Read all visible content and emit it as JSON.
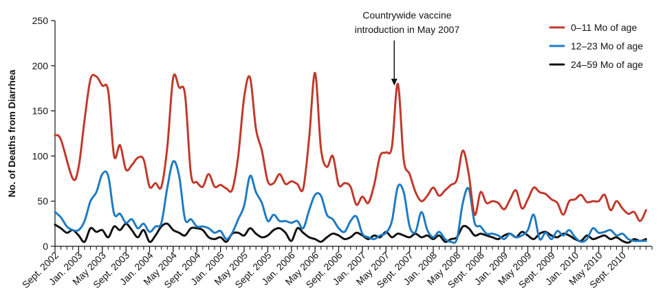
{
  "chart_data": {
    "type": "line",
    "title": "",
    "xlabel": "",
    "ylabel": "No. of Deaths from Diarrhea",
    "ylim": [
      0,
      250
    ],
    "y_ticks": [
      0,
      50,
      100,
      150,
      200,
      250
    ],
    "x_tick_labels": [
      "Sept. 2002",
      "Jan. 2003",
      "May 2003",
      "Sept. 2003",
      "Jan. 2004",
      "May 2004",
      "Sept. 2004",
      "Jan. 2005",
      "May 2005",
      "Sept. 2005",
      "Jan. 2006",
      "May 2006",
      "Sept. 2006",
      "Jan. 2007",
      "May 2007",
      "Sept. 2007",
      "Jan. 2008",
      "May 2008",
      "Sept. 2008",
      "Jan. 2009",
      "May 2009",
      "Sept. 2009",
      "Jan. 2010",
      "May 2010",
      "Sept. 2010"
    ],
    "x_index_range": [
      0,
      101
    ],
    "grid": false,
    "legend_position": "top-right",
    "annotation": {
      "lines": [
        "Countrywide vaccine",
        "introduction in May 2007"
      ],
      "x_index": 57.4,
      "arrow_from_y": 228,
      "arrow_to_y": 178
    },
    "series": [
      {
        "name": "0–11 Mo of age",
        "color": "#c0392b",
        "points": [
          [
            0,
            123
          ],
          [
            1,
            118
          ],
          [
            3,
            75
          ],
          [
            4,
            88
          ],
          [
            5,
            140
          ],
          [
            6,
            185
          ],
          [
            7,
            188
          ],
          [
            8,
            178
          ],
          [
            9,
            172
          ],
          [
            10,
            100
          ],
          [
            11,
            112
          ],
          [
            12,
            85
          ],
          [
            13,
            90
          ],
          [
            14,
            98
          ],
          [
            15,
            96
          ],
          [
            16,
            66
          ],
          [
            17,
            70
          ],
          [
            18,
            66
          ],
          [
            19,
            110
          ],
          [
            20,
            187
          ],
          [
            21,
            176
          ],
          [
            22,
            168
          ],
          [
            23,
            80
          ],
          [
            24,
            71
          ],
          [
            25,
            66
          ],
          [
            26,
            80
          ],
          [
            27,
            66
          ],
          [
            28,
            68
          ],
          [
            29,
            64
          ],
          [
            30,
            63
          ],
          [
            31,
            100
          ],
          [
            32,
            165
          ],
          [
            33,
            187
          ],
          [
            34,
            130
          ],
          [
            35,
            106
          ],
          [
            36,
            72
          ],
          [
            37,
            70
          ],
          [
            38,
            80
          ],
          [
            39,
            69
          ],
          [
            40,
            72
          ],
          [
            41,
            69
          ],
          [
            42,
            64
          ],
          [
            43,
            120
          ],
          [
            44,
            192
          ],
          [
            45,
            108
          ],
          [
            46,
            88
          ],
          [
            47,
            100
          ],
          [
            48,
            68
          ],
          [
            49,
            70
          ],
          [
            50,
            66
          ],
          [
            51,
            46
          ],
          [
            52,
            55
          ],
          [
            53,
            48
          ],
          [
            54,
            68
          ],
          [
            55,
            100
          ],
          [
            56,
            104
          ],
          [
            57,
            110
          ],
          [
            58,
            180
          ],
          [
            59,
            96
          ],
          [
            60,
            80
          ],
          [
            61,
            60
          ],
          [
            62,
            50
          ],
          [
            63,
            56
          ],
          [
            64,
            65
          ],
          [
            65,
            56
          ],
          [
            66,
            62
          ],
          [
            67,
            68
          ],
          [
            68,
            74
          ],
          [
            69,
            106
          ],
          [
            70,
            80
          ],
          [
            71,
            35
          ],
          [
            72,
            60
          ],
          [
            73,
            48
          ],
          [
            74,
            50
          ],
          [
            75,
            48
          ],
          [
            76,
            41
          ],
          [
            77,
            52
          ],
          [
            78,
            62
          ],
          [
            79,
            42
          ],
          [
            80,
            52
          ],
          [
            81,
            65
          ],
          [
            82,
            60
          ],
          [
            83,
            58
          ],
          [
            84,
            52
          ],
          [
            85,
            48
          ],
          [
            86,
            35
          ],
          [
            87,
            50
          ],
          [
            88,
            52
          ],
          [
            89,
            57
          ],
          [
            90,
            49
          ],
          [
            91,
            50
          ],
          [
            92,
            50
          ],
          [
            93,
            57
          ],
          [
            94,
            40
          ],
          [
            95,
            50
          ],
          [
            96,
            42
          ],
          [
            97,
            36
          ],
          [
            98,
            38
          ],
          [
            99,
            28
          ],
          [
            100,
            40
          ]
        ]
      },
      {
        "name": "12–23 Mo of age",
        "color": "#1e7bc3",
        "points": [
          [
            0,
            38
          ],
          [
            1,
            32
          ],
          [
            2,
            22
          ],
          [
            3,
            18
          ],
          [
            4,
            18
          ],
          [
            5,
            28
          ],
          [
            6,
            50
          ],
          [
            7,
            60
          ],
          [
            8,
            80
          ],
          [
            9,
            78
          ],
          [
            10,
            36
          ],
          [
            11,
            36
          ],
          [
            12,
            26
          ],
          [
            13,
            30
          ],
          [
            14,
            20
          ],
          [
            15,
            25
          ],
          [
            16,
            16
          ],
          [
            17,
            22
          ],
          [
            18,
            26
          ],
          [
            19,
            65
          ],
          [
            20,
            94
          ],
          [
            21,
            78
          ],
          [
            22,
            30
          ],
          [
            23,
            30
          ],
          [
            24,
            22
          ],
          [
            25,
            22
          ],
          [
            26,
            20
          ],
          [
            27,
            15
          ],
          [
            28,
            17
          ],
          [
            29,
            8
          ],
          [
            30,
            15
          ],
          [
            31,
            30
          ],
          [
            32,
            45
          ],
          [
            33,
            78
          ],
          [
            34,
            60
          ],
          [
            35,
            48
          ],
          [
            36,
            28
          ],
          [
            37,
            35
          ],
          [
            38,
            28
          ],
          [
            39,
            28
          ],
          [
            40,
            26
          ],
          [
            41,
            28
          ],
          [
            42,
            20
          ],
          [
            43,
            40
          ],
          [
            44,
            57
          ],
          [
            45,
            56
          ],
          [
            46,
            35
          ],
          [
            47,
            30
          ],
          [
            48,
            20
          ],
          [
            49,
            16
          ],
          [
            50,
            28
          ],
          [
            51,
            33
          ],
          [
            52,
            14
          ],
          [
            53,
            10
          ],
          [
            54,
            8
          ],
          [
            55,
            12
          ],
          [
            56,
            15
          ],
          [
            57,
            28
          ],
          [
            58,
            66
          ],
          [
            59,
            60
          ],
          [
            60,
            22
          ],
          [
            61,
            16
          ],
          [
            62,
            38
          ],
          [
            63,
            18
          ],
          [
            64,
            10
          ],
          [
            65,
            16
          ],
          [
            66,
            8
          ],
          [
            67,
            5
          ],
          [
            68,
            8
          ],
          [
            69,
            48
          ],
          [
            70,
            64
          ],
          [
            71,
            26
          ],
          [
            72,
            22
          ],
          [
            73,
            14
          ],
          [
            74,
            14
          ],
          [
            75,
            12
          ],
          [
            76,
            8
          ],
          [
            77,
            14
          ],
          [
            78,
            10
          ],
          [
            79,
            12
          ],
          [
            80,
            18
          ],
          [
            81,
            35
          ],
          [
            82,
            8
          ],
          [
            83,
            15
          ],
          [
            84,
            8
          ],
          [
            85,
            17
          ],
          [
            86,
            12
          ],
          [
            87,
            18
          ],
          [
            88,
            10
          ],
          [
            89,
            5
          ],
          [
            90,
            8
          ],
          [
            91,
            20
          ],
          [
            92,
            15
          ],
          [
            93,
            16
          ],
          [
            94,
            18
          ],
          [
            95,
            12
          ],
          [
            96,
            14
          ],
          [
            97,
            8
          ],
          [
            98,
            6
          ],
          [
            99,
            6
          ],
          [
            100,
            6
          ]
        ]
      },
      {
        "name": "24–59 Mo of age",
        "color": "#111111",
        "points": [
          [
            0,
            24
          ],
          [
            1,
            20
          ],
          [
            2,
            15
          ],
          [
            3,
            18
          ],
          [
            4,
            12
          ],
          [
            5,
            5
          ],
          [
            6,
            20
          ],
          [
            7,
            16
          ],
          [
            8,
            18
          ],
          [
            9,
            10
          ],
          [
            10,
            22
          ],
          [
            11,
            18
          ],
          [
            12,
            25
          ],
          [
            13,
            18
          ],
          [
            14,
            10
          ],
          [
            15,
            18
          ],
          [
            16,
            5
          ],
          [
            17,
            12
          ],
          [
            18,
            22
          ],
          [
            19,
            25
          ],
          [
            20,
            18
          ],
          [
            21,
            15
          ],
          [
            22,
            12
          ],
          [
            23,
            20
          ],
          [
            24,
            20
          ],
          [
            25,
            18
          ],
          [
            26,
            10
          ],
          [
            27,
            8
          ],
          [
            28,
            10
          ],
          [
            29,
            5
          ],
          [
            30,
            14
          ],
          [
            31,
            15
          ],
          [
            32,
            12
          ],
          [
            33,
            20
          ],
          [
            34,
            14
          ],
          [
            35,
            10
          ],
          [
            36,
            12
          ],
          [
            37,
            18
          ],
          [
            38,
            20
          ],
          [
            39,
            15
          ],
          [
            40,
            6
          ],
          [
            41,
            20
          ],
          [
            42,
            15
          ],
          [
            43,
            10
          ],
          [
            44,
            8
          ],
          [
            45,
            5
          ],
          [
            46,
            10
          ],
          [
            47,
            14
          ],
          [
            48,
            12
          ],
          [
            49,
            8
          ],
          [
            50,
            10
          ],
          [
            51,
            15
          ],
          [
            52,
            12
          ],
          [
            53,
            8
          ],
          [
            54,
            12
          ],
          [
            55,
            10
          ],
          [
            56,
            16
          ],
          [
            57,
            10
          ],
          [
            58,
            14
          ],
          [
            59,
            12
          ],
          [
            60,
            10
          ],
          [
            61,
            14
          ],
          [
            62,
            10
          ],
          [
            63,
            12
          ],
          [
            64,
            8
          ],
          [
            65,
            12
          ],
          [
            66,
            5
          ],
          [
            67,
            8
          ],
          [
            68,
            10
          ],
          [
            69,
            22
          ],
          [
            70,
            20
          ],
          [
            71,
            12
          ],
          [
            72,
            14
          ],
          [
            73,
            12
          ],
          [
            74,
            10
          ],
          [
            75,
            8
          ],
          [
            76,
            12
          ],
          [
            77,
            14
          ],
          [
            78,
            10
          ],
          [
            79,
            16
          ],
          [
            80,
            12
          ],
          [
            81,
            8
          ],
          [
            82,
            14
          ],
          [
            83,
            16
          ],
          [
            84,
            12
          ],
          [
            85,
            10
          ],
          [
            86,
            14
          ],
          [
            87,
            12
          ],
          [
            88,
            8
          ],
          [
            89,
            6
          ],
          [
            90,
            12
          ],
          [
            91,
            8
          ],
          [
            92,
            10
          ],
          [
            93,
            12
          ],
          [
            94,
            8
          ],
          [
            95,
            10
          ],
          [
            96,
            6
          ],
          [
            97,
            4
          ],
          [
            98,
            8
          ],
          [
            99,
            6
          ],
          [
            100,
            8
          ]
        ]
      }
    ]
  }
}
